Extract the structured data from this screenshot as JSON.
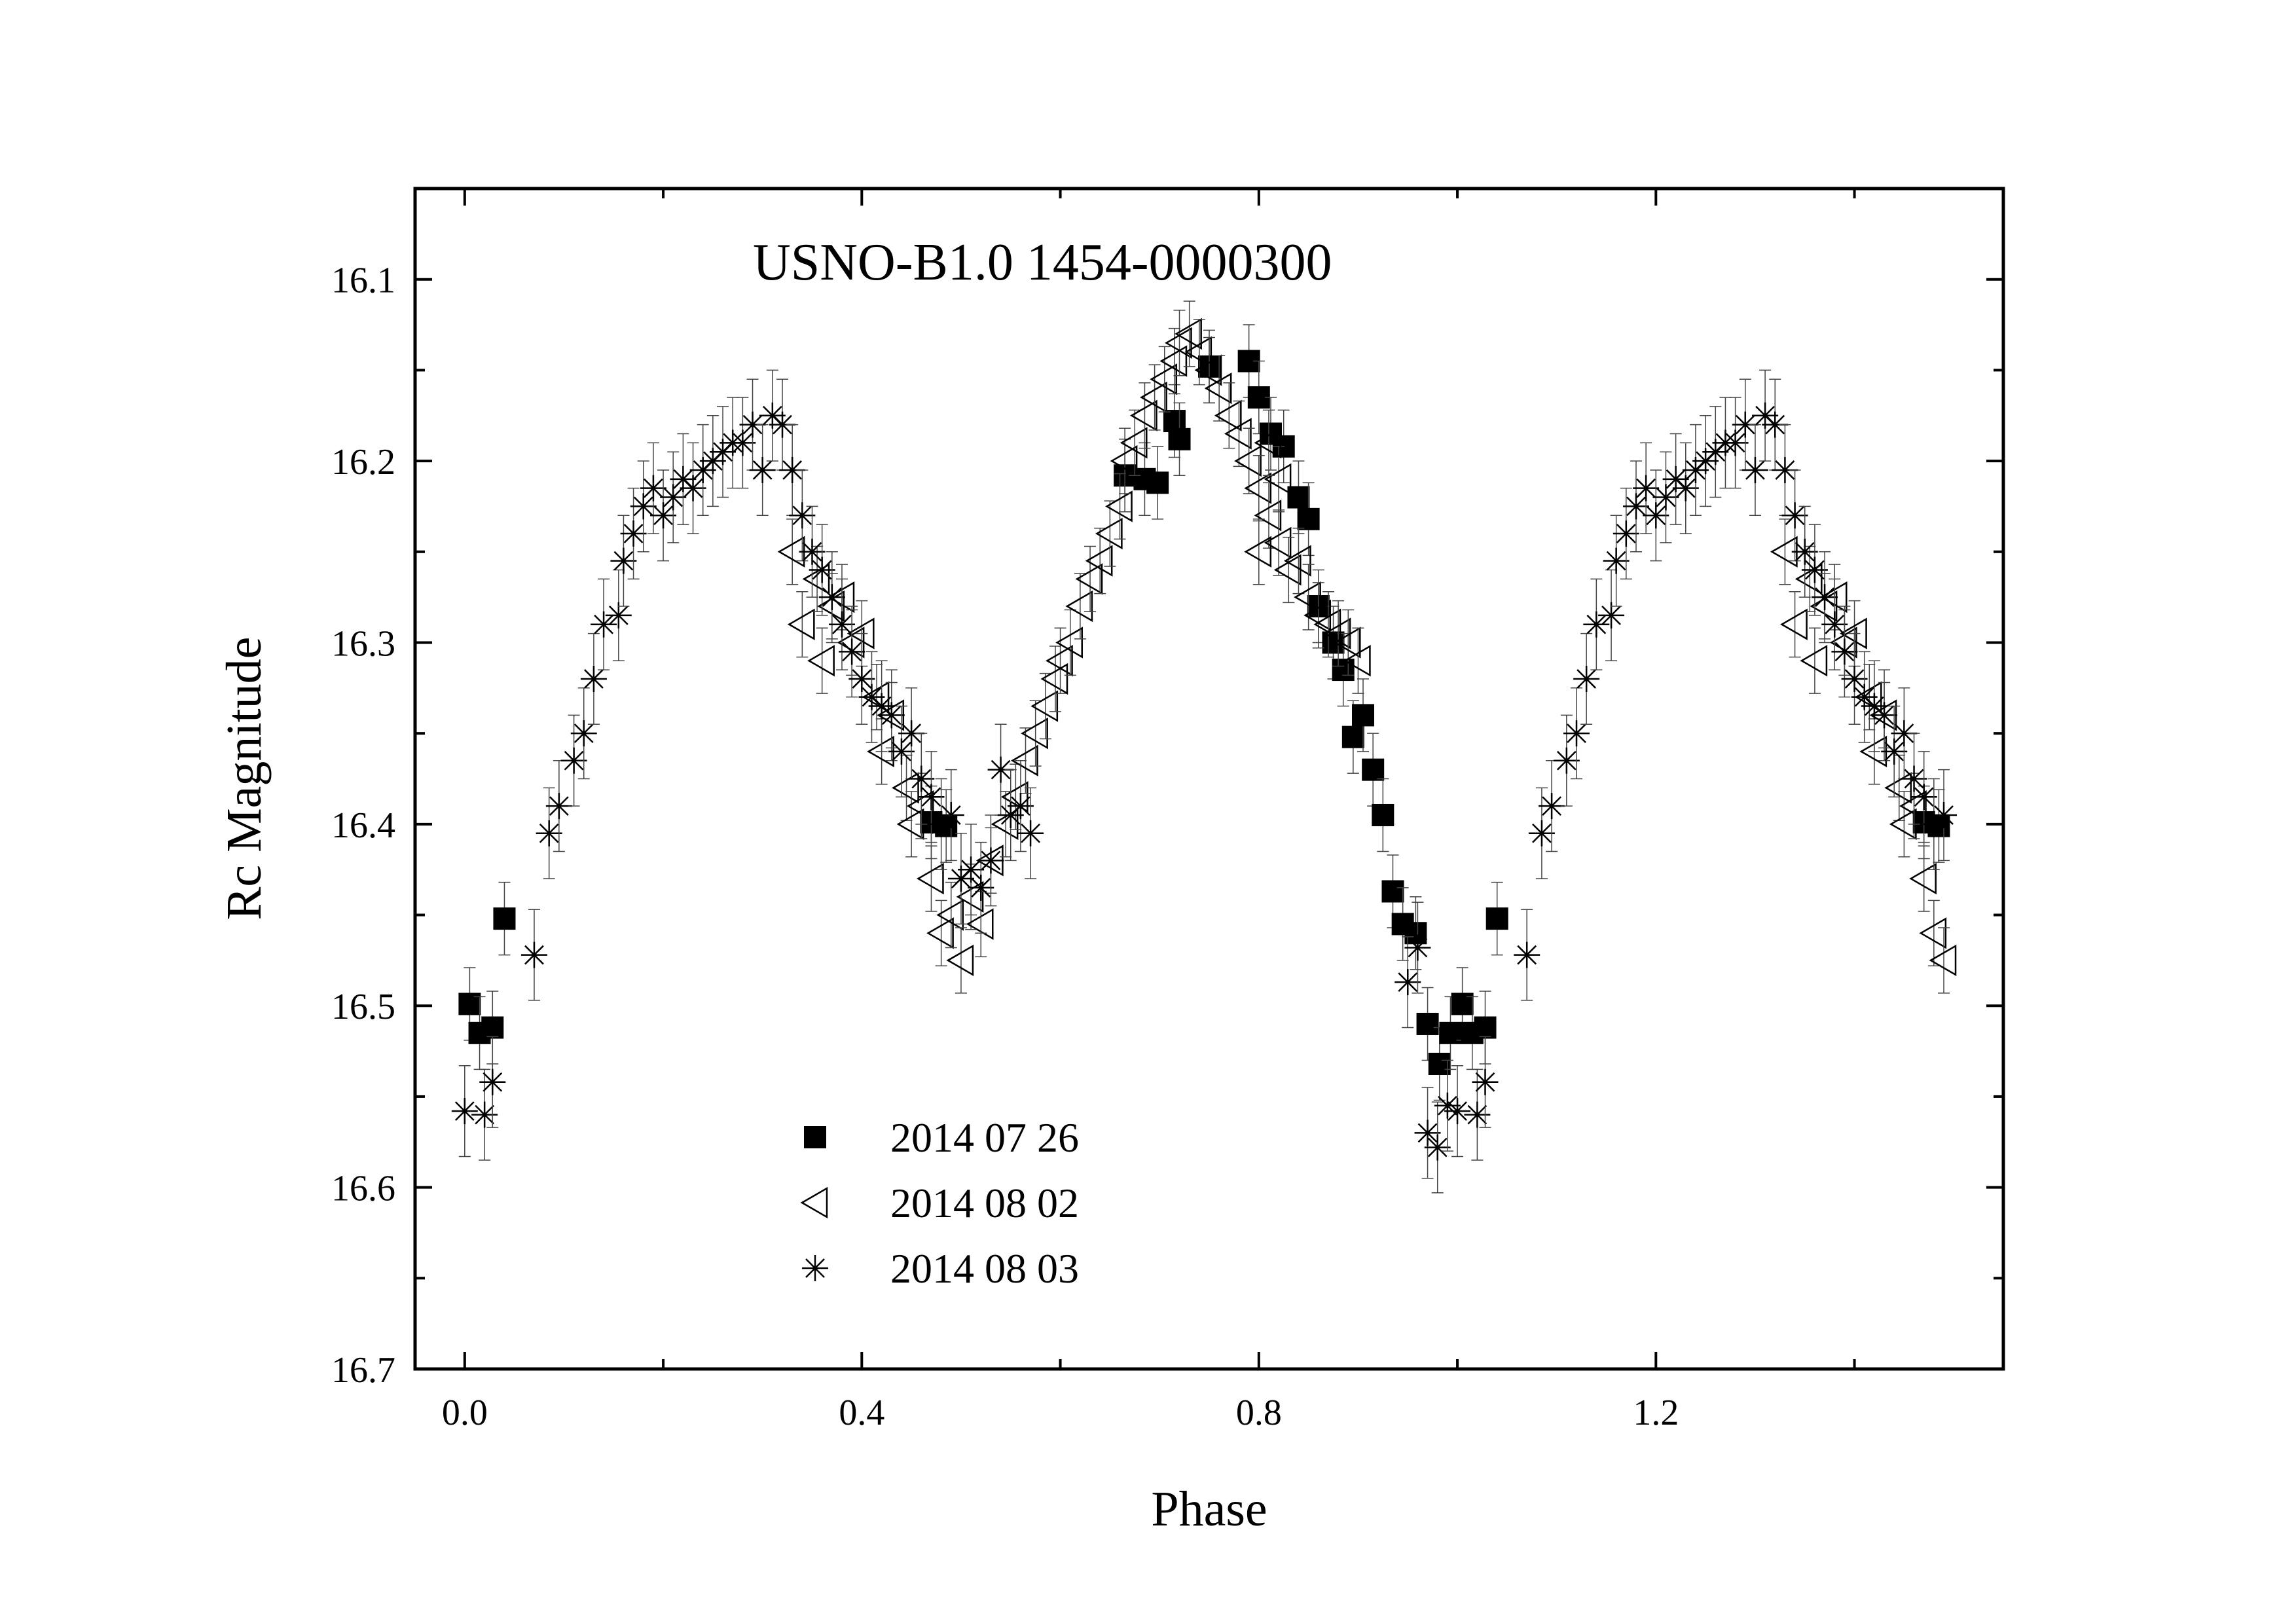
{
  "chart_data": {
    "type": "scatter",
    "title": "USNO-B1.0 1454-0000300",
    "xlabel": "Phase",
    "ylabel": "Rc Magnitude",
    "xlim": [
      -0.05,
      1.55
    ],
    "ylim": [
      16.05,
      16.7
    ],
    "y_inverted": true,
    "grid": false,
    "legend_position": "bottom-left",
    "x_ticks": [
      "0.0",
      "0.4",
      "0.8",
      "1.2"
    ],
    "x_tick_values": [
      0.0,
      0.4,
      0.8,
      1.2
    ],
    "y_ticks": [
      "16.1",
      "16.2",
      "16.3",
      "16.4",
      "16.5",
      "16.6",
      "16.7"
    ],
    "y_tick_values": [
      16.1,
      16.2,
      16.3,
      16.4,
      16.5,
      16.6,
      16.7
    ],
    "series": [
      {
        "name": "2014 07 26",
        "marker": "square-filled",
        "error": 0.02,
        "points": [
          [
            0.005,
            16.499
          ],
          [
            0.015,
            16.515
          ],
          [
            0.028,
            16.512
          ],
          [
            0.04,
            16.452
          ],
          [
            0.47,
            16.399
          ],
          [
            0.485,
            16.401
          ],
          [
            0.665,
            16.208
          ],
          [
            0.685,
            16.21
          ],
          [
            0.698,
            16.212
          ],
          [
            0.715,
            16.178
          ],
          [
            0.72,
            16.188
          ],
          [
            0.75,
            16.148
          ],
          [
            0.79,
            16.145
          ],
          [
            0.8,
            16.165
          ],
          [
            0.812,
            16.185
          ],
          [
            0.825,
            16.192
          ],
          [
            0.84,
            16.22
          ],
          [
            0.85,
            16.232
          ],
          [
            0.86,
            16.28
          ],
          [
            0.875,
            16.3
          ],
          [
            0.885,
            16.315
          ],
          [
            0.895,
            16.352
          ],
          [
            0.905,
            16.34
          ],
          [
            0.915,
            16.37
          ],
          [
            0.925,
            16.395
          ],
          [
            0.935,
            16.437
          ],
          [
            0.945,
            16.455
          ],
          [
            0.958,
            16.46
          ],
          [
            0.97,
            16.51
          ],
          [
            0.982,
            16.532
          ],
          [
            0.993,
            16.515
          ],
          [
            1.005,
            16.499
          ],
          [
            1.015,
            16.515
          ],
          [
            1.028,
            16.512
          ],
          [
            1.04,
            16.452
          ],
          [
            1.47,
            16.399
          ],
          [
            1.485,
            16.401
          ]
        ]
      },
      {
        "name": "2014 08 02",
        "marker": "triangle-left-open",
        "error": 0.018,
        "points": [
          [
            0.33,
            16.25
          ],
          [
            0.34,
            16.29
          ],
          [
            0.355,
            16.265
          ],
          [
            0.36,
            16.31
          ],
          [
            0.37,
            16.28
          ],
          [
            0.38,
            16.275
          ],
          [
            0.39,
            16.3
          ],
          [
            0.4,
            16.295
          ],
          [
            0.415,
            16.33
          ],
          [
            0.42,
            16.36
          ],
          [
            0.43,
            16.34
          ],
          [
            0.445,
            16.38
          ],
          [
            0.45,
            16.4
          ],
          [
            0.46,
            16.39
          ],
          [
            0.47,
            16.43
          ],
          [
            0.48,
            16.46
          ],
          [
            0.49,
            16.45
          ],
          [
            0.5,
            16.475
          ],
          [
            0.51,
            16.44
          ],
          [
            0.52,
            16.455
          ],
          [
            0.53,
            16.42
          ],
          [
            0.545,
            16.4
          ],
          [
            0.555,
            16.385
          ],
          [
            0.565,
            16.365
          ],
          [
            0.575,
            16.35
          ],
          [
            0.585,
            16.335
          ],
          [
            0.595,
            16.32
          ],
          [
            0.6,
            16.31
          ],
          [
            0.61,
            16.3
          ],
          [
            0.62,
            16.28
          ],
          [
            0.63,
            16.265
          ],
          [
            0.64,
            16.255
          ],
          [
            0.65,
            16.24
          ],
          [
            0.66,
            16.225
          ],
          [
            0.665,
            16.2
          ],
          [
            0.675,
            16.19
          ],
          [
            0.685,
            16.175
          ],
          [
            0.695,
            16.165
          ],
          [
            0.705,
            16.155
          ],
          [
            0.715,
            16.145
          ],
          [
            0.72,
            16.135
          ],
          [
            0.73,
            16.13
          ],
          [
            0.74,
            16.14
          ],
          [
            0.75,
            16.15
          ],
          [
            0.76,
            16.16
          ],
          [
            0.77,
            16.175
          ],
          [
            0.78,
            16.185
          ],
          [
            0.79,
            16.2
          ],
          [
            0.8,
            16.215
          ],
          [
            0.81,
            16.23
          ],
          [
            0.82,
            16.245
          ],
          [
            0.83,
            16.26
          ],
          [
            0.84,
            16.255
          ],
          [
            0.85,
            16.275
          ],
          [
            0.86,
            16.285
          ],
          [
            0.87,
            16.29
          ],
          [
            0.88,
            16.295
          ],
          [
            0.89,
            16.3
          ],
          [
            0.9,
            16.31
          ],
          [
            0.82,
            16.21
          ],
          [
            0.81,
            16.19
          ],
          [
            0.8,
            16.25
          ],
          [
            1.33,
            16.25
          ],
          [
            1.34,
            16.29
          ],
          [
            1.355,
            16.265
          ],
          [
            1.36,
            16.31
          ],
          [
            1.37,
            16.28
          ],
          [
            1.38,
            16.275
          ],
          [
            1.39,
            16.3
          ],
          [
            1.4,
            16.295
          ],
          [
            1.415,
            16.33
          ],
          [
            1.42,
            16.36
          ],
          [
            1.43,
            16.34
          ],
          [
            1.445,
            16.38
          ],
          [
            1.45,
            16.4
          ],
          [
            1.46,
            16.39
          ],
          [
            1.47,
            16.43
          ],
          [
            1.48,
            16.46
          ],
          [
            1.49,
            16.475
          ]
        ]
      },
      {
        "name": "2014 08 03",
        "marker": "asterisk",
        "error": 0.025,
        "points": [
          [
            0.0,
            16.558
          ],
          [
            0.02,
            16.56
          ],
          [
            0.028,
            16.542
          ],
          [
            0.07,
            16.472
          ],
          [
            0.085,
            16.405
          ],
          [
            0.095,
            16.39
          ],
          [
            0.11,
            16.365
          ],
          [
            0.12,
            16.35
          ],
          [
            0.13,
            16.32
          ],
          [
            0.14,
            16.29
          ],
          [
            0.155,
            16.285
          ],
          [
            0.16,
            16.255
          ],
          [
            0.17,
            16.24
          ],
          [
            0.18,
            16.225
          ],
          [
            0.19,
            16.215
          ],
          [
            0.2,
            16.23
          ],
          [
            0.21,
            16.22
          ],
          [
            0.22,
            16.21
          ],
          [
            0.23,
            16.215
          ],
          [
            0.24,
            16.205
          ],
          [
            0.25,
            16.2
          ],
          [
            0.26,
            16.195
          ],
          [
            0.27,
            16.19
          ],
          [
            0.28,
            16.19
          ],
          [
            0.29,
            16.18
          ],
          [
            0.3,
            16.205
          ],
          [
            0.31,
            16.175
          ],
          [
            0.32,
            16.18
          ],
          [
            0.33,
            16.205
          ],
          [
            0.34,
            16.23
          ],
          [
            0.35,
            16.25
          ],
          [
            0.36,
            16.26
          ],
          [
            0.37,
            16.275
          ],
          [
            0.38,
            16.29
          ],
          [
            0.39,
            16.305
          ],
          [
            0.4,
            16.32
          ],
          [
            0.41,
            16.33
          ],
          [
            0.42,
            16.335
          ],
          [
            0.43,
            16.34
          ],
          [
            0.44,
            16.36
          ],
          [
            0.45,
            16.35
          ],
          [
            0.46,
            16.375
          ],
          [
            0.47,
            16.385
          ],
          [
            0.48,
            16.4
          ],
          [
            0.49,
            16.395
          ],
          [
            0.5,
            16.43
          ],
          [
            0.51,
            16.425
          ],
          [
            0.52,
            16.435
          ],
          [
            0.53,
            16.42
          ],
          [
            0.54,
            16.37
          ],
          [
            0.55,
            16.395
          ],
          [
            0.56,
            16.39
          ],
          [
            0.57,
            16.405
          ],
          [
            0.95,
            16.487
          ],
          [
            0.96,
            16.468
          ],
          [
            0.97,
            16.57
          ],
          [
            0.98,
            16.578
          ],
          [
            0.99,
            16.555
          ],
          [
            1.0,
            16.558
          ],
          [
            1.02,
            16.56
          ],
          [
            1.028,
            16.542
          ],
          [
            1.07,
            16.472
          ],
          [
            1.085,
            16.405
          ],
          [
            1.095,
            16.39
          ],
          [
            1.11,
            16.365
          ],
          [
            1.12,
            16.35
          ],
          [
            1.13,
            16.32
          ],
          [
            1.14,
            16.29
          ],
          [
            1.155,
            16.285
          ],
          [
            1.16,
            16.255
          ],
          [
            1.17,
            16.24
          ],
          [
            1.18,
            16.225
          ],
          [
            1.19,
            16.215
          ],
          [
            1.2,
            16.23
          ],
          [
            1.21,
            16.22
          ],
          [
            1.22,
            16.21
          ],
          [
            1.23,
            16.215
          ],
          [
            1.24,
            16.205
          ],
          [
            1.25,
            16.2
          ],
          [
            1.26,
            16.195
          ],
          [
            1.27,
            16.19
          ],
          [
            1.28,
            16.19
          ],
          [
            1.29,
            16.18
          ],
          [
            1.3,
            16.205
          ],
          [
            1.31,
            16.175
          ],
          [
            1.32,
            16.18
          ],
          [
            1.33,
            16.205
          ],
          [
            1.34,
            16.23
          ],
          [
            1.35,
            16.25
          ],
          [
            1.36,
            16.26
          ],
          [
            1.37,
            16.275
          ],
          [
            1.38,
            16.29
          ],
          [
            1.39,
            16.305
          ],
          [
            1.4,
            16.32
          ],
          [
            1.41,
            16.33
          ],
          [
            1.42,
            16.335
          ],
          [
            1.43,
            16.34
          ],
          [
            1.44,
            16.36
          ],
          [
            1.45,
            16.35
          ],
          [
            1.46,
            16.375
          ],
          [
            1.47,
            16.385
          ],
          [
            1.48,
            16.4
          ],
          [
            1.49,
            16.395
          ]
        ]
      }
    ]
  }
}
